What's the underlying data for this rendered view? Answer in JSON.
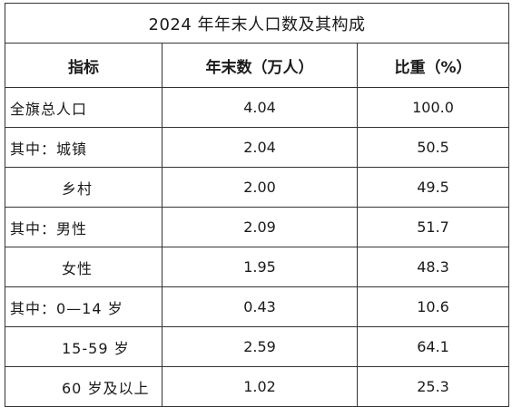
{
  "table": {
    "title": "2024 年年末人口数及其构成",
    "headers": [
      "指标",
      "年末数（万人）",
      "比重（%）"
    ],
    "rows": [
      {
        "label": "全旗总人口",
        "value": "4.04",
        "share": "100.0"
      },
      {
        "label": "其中：城镇",
        "value": "2.04",
        "share": "50.5"
      },
      {
        "label": "乡村",
        "value": "2.00",
        "share": "49.5"
      },
      {
        "label": "其中：男性",
        "value": "2.09",
        "share": "51.7"
      },
      {
        "label": "女性",
        "value": "1.95",
        "share": "48.3"
      },
      {
        "label": "其中：0—14 岁",
        "value": "0.43",
        "share": "10.6"
      },
      {
        "label": "15-59 岁",
        "value": "2.59",
        "share": "64.1"
      },
      {
        "label": "60 岁及以上",
        "value": "1.02",
        "share": "25.3"
      }
    ]
  }
}
